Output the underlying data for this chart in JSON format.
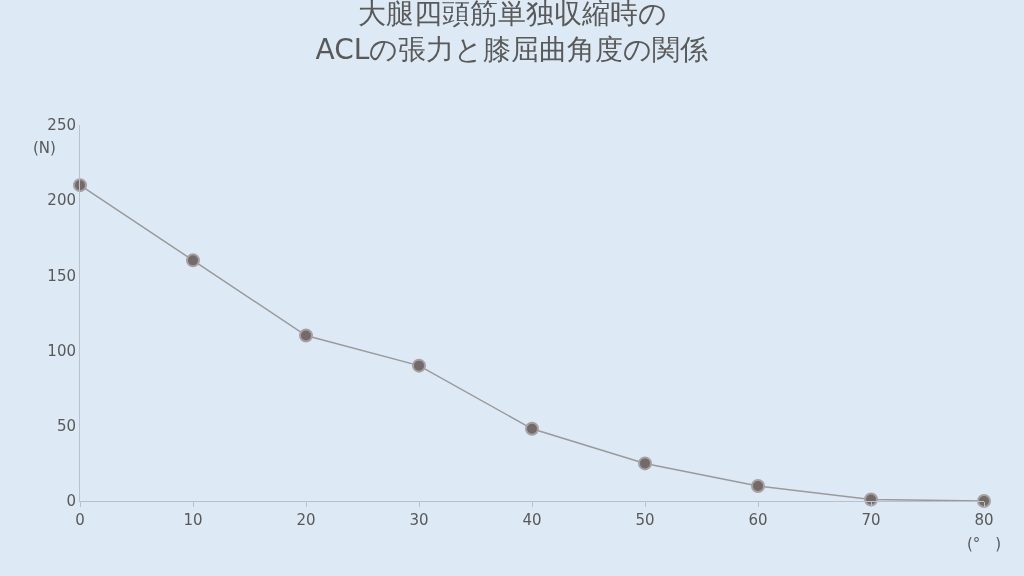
{
  "chart_data": {
    "type": "line",
    "title": "大腿四頭筋単独収縮時の\nACLの張力と膝屈曲角度の関係",
    "xlabel": "(°　)",
    "ylabel": "(N)",
    "x": [
      0,
      10,
      20,
      30,
      40,
      50,
      60,
      70,
      80
    ],
    "series": [
      {
        "color": "#736a6a",
        "values": [
          210,
          160,
          110,
          90,
          48,
          25,
          10,
          1,
          0
        ]
      }
    ],
    "xlim": [
      0,
      80
    ],
    "xticks": [
      0,
      10,
      20,
      30,
      40,
      50,
      60,
      70,
      80
    ],
    "ylim": [
      0,
      250
    ],
    "yticks": [
      0,
      50,
      100,
      150,
      200,
      250
    ],
    "grid": false,
    "legend": false,
    "marker": "circle",
    "line_style": "solid"
  }
}
